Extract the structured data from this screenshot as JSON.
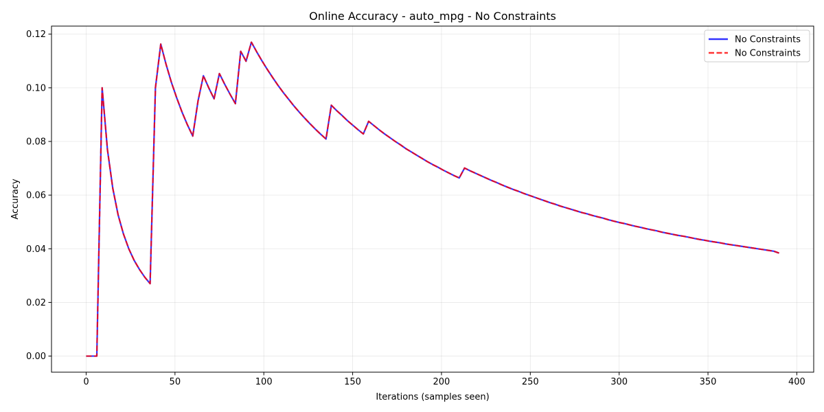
{
  "chart_data": {
    "type": "line",
    "title": "Online Accuracy - auto_mpg - No Constraints",
    "xlabel": "Iterations (samples seen)",
    "ylabel": "Accuracy",
    "xlim": [
      -19.5,
      409.5
    ],
    "ylim": [
      -0.006,
      0.123
    ],
    "xticks": [
      0,
      50,
      100,
      150,
      200,
      250,
      300,
      350,
      400
    ],
    "xtick_labels": [
      "0",
      "50",
      "100",
      "150",
      "200",
      "250",
      "300",
      "350",
      "400"
    ],
    "yticks": [
      0.0,
      0.02,
      0.04,
      0.06,
      0.08,
      0.1,
      0.12
    ],
    "ytick_labels": [
      "0.00",
      "0.02",
      "0.04",
      "0.06",
      "0.08",
      "0.10",
      "0.12"
    ],
    "grid": true,
    "legend_position": "top-right",
    "series": [
      {
        "name": "No Constraints",
        "color": "#0000ff",
        "style": "solid",
        "x": [
          0,
          3,
          6,
          9,
          12,
          15,
          18,
          21,
          24,
          27,
          30,
          33,
          36,
          39,
          42,
          45,
          48,
          51,
          54,
          57,
          60,
          63,
          66,
          69,
          72,
          75,
          78,
          81,
          84,
          87,
          90,
          93,
          96,
          99,
          102,
          105,
          108,
          111,
          114,
          117,
          120,
          123,
          126,
          129,
          132,
          135,
          138,
          141,
          144,
          147,
          150,
          153,
          156,
          159,
          162,
          165,
          168,
          171,
          174,
          177,
          180,
          183,
          186,
          189,
          192,
          195,
          198,
          201,
          204,
          207,
          210,
          213,
          216,
          219,
          222,
          225,
          228,
          231,
          234,
          237,
          240,
          243,
          246,
          249,
          252,
          255,
          258,
          261,
          264,
          267,
          270,
          273,
          276,
          279,
          282,
          285,
          288,
          291,
          294,
          297,
          300,
          303,
          306,
          309,
          312,
          315,
          318,
          321,
          324,
          327,
          330,
          333,
          336,
          339,
          342,
          345,
          348,
          351,
          354,
          357,
          360,
          363,
          366,
          369,
          372,
          375,
          378,
          381,
          384,
          387,
          390
        ],
        "y": [
          0.0,
          0.0,
          0.0,
          0.1,
          0.0769,
          0.0625,
          0.0526,
          0.0455,
          0.04,
          0.0357,
          0.0323,
          0.0294,
          0.027,
          0.1,
          0.1163,
          0.1087,
          0.102,
          0.0962,
          0.0909,
          0.0862,
          0.082,
          0.0952,
          0.1045,
          0.1,
          0.0959,
          0.1053,
          0.1013,
          0.0976,
          0.0941,
          0.1136,
          0.1099,
          0.117,
          0.1134,
          0.11,
          0.1068,
          0.1038,
          0.1009,
          0.0982,
          0.0957,
          0.0932,
          0.0909,
          0.0887,
          0.0866,
          0.0846,
          0.0827,
          0.0809,
          0.0935,
          0.0915,
          0.0897,
          0.0878,
          0.0861,
          0.0844,
          0.0828,
          0.0875,
          0.0859,
          0.0843,
          0.0828,
          0.0814,
          0.08,
          0.0787,
          0.0773,
          0.0761,
          0.0749,
          0.0737,
          0.0725,
          0.0714,
          0.0704,
          0.0693,
          0.0683,
          0.0673,
          0.0664,
          0.0701,
          0.0691,
          0.0682,
          0.0673,
          0.0664,
          0.0655,
          0.0647,
          0.0638,
          0.063,
          0.0622,
          0.0615,
          0.0607,
          0.06,
          0.0593,
          0.0586,
          0.0579,
          0.0572,
          0.0566,
          0.0559,
          0.0553,
          0.0547,
          0.0541,
          0.0535,
          0.053,
          0.0524,
          0.0519,
          0.0514,
          0.0508,
          0.0503,
          0.0498,
          0.0494,
          0.0489,
          0.0484,
          0.048,
          0.0475,
          0.0471,
          0.0467,
          0.0462,
          0.0458,
          0.0454,
          0.045,
          0.0447,
          0.0443,
          0.0439,
          0.0435,
          0.0432,
          0.0428,
          0.0425,
          0.0422,
          0.0418,
          0.0415,
          0.0412,
          0.0409,
          0.0406,
          0.0403,
          0.04,
          0.0397,
          0.0394,
          0.0391,
          0.0384
        ]
      },
      {
        "name": "No Constraints",
        "color": "#ff0000",
        "style": "dashed",
        "x": [
          0,
          3,
          6,
          9,
          12,
          15,
          18,
          21,
          24,
          27,
          30,
          33,
          36,
          39,
          42,
          45,
          48,
          51,
          54,
          57,
          60,
          63,
          66,
          69,
          72,
          75,
          78,
          81,
          84,
          87,
          90,
          93,
          96,
          99,
          102,
          105,
          108,
          111,
          114,
          117,
          120,
          123,
          126,
          129,
          132,
          135,
          138,
          141,
          144,
          147,
          150,
          153,
          156,
          159,
          162,
          165,
          168,
          171,
          174,
          177,
          180,
          183,
          186,
          189,
          192,
          195,
          198,
          201,
          204,
          207,
          210,
          213,
          216,
          219,
          222,
          225,
          228,
          231,
          234,
          237,
          240,
          243,
          246,
          249,
          252,
          255,
          258,
          261,
          264,
          267,
          270,
          273,
          276,
          279,
          282,
          285,
          288,
          291,
          294,
          297,
          300,
          303,
          306,
          309,
          312,
          315,
          318,
          321,
          324,
          327,
          330,
          333,
          336,
          339,
          342,
          345,
          348,
          351,
          354,
          357,
          360,
          363,
          366,
          369,
          372,
          375,
          378,
          381,
          384,
          387,
          390
        ],
        "y": [
          0.0,
          0.0,
          0.0,
          0.1,
          0.0769,
          0.0625,
          0.0526,
          0.0455,
          0.04,
          0.0357,
          0.0323,
          0.0294,
          0.027,
          0.1,
          0.1163,
          0.1087,
          0.102,
          0.0962,
          0.0909,
          0.0862,
          0.082,
          0.0952,
          0.1045,
          0.1,
          0.0959,
          0.1053,
          0.1013,
          0.0976,
          0.0941,
          0.1136,
          0.1099,
          0.117,
          0.1134,
          0.11,
          0.1068,
          0.1038,
          0.1009,
          0.0982,
          0.0957,
          0.0932,
          0.0909,
          0.0887,
          0.0866,
          0.0846,
          0.0827,
          0.0809,
          0.0935,
          0.0915,
          0.0897,
          0.0878,
          0.0861,
          0.0844,
          0.0828,
          0.0875,
          0.0859,
          0.0843,
          0.0828,
          0.0814,
          0.08,
          0.0787,
          0.0773,
          0.0761,
          0.0749,
          0.0737,
          0.0725,
          0.0714,
          0.0704,
          0.0693,
          0.0683,
          0.0673,
          0.0664,
          0.0701,
          0.0691,
          0.0682,
          0.0673,
          0.0664,
          0.0655,
          0.0647,
          0.0638,
          0.063,
          0.0622,
          0.0615,
          0.0607,
          0.06,
          0.0593,
          0.0586,
          0.0579,
          0.0572,
          0.0566,
          0.0559,
          0.0553,
          0.0547,
          0.0541,
          0.0535,
          0.053,
          0.0524,
          0.0519,
          0.0514,
          0.0508,
          0.0503,
          0.0498,
          0.0494,
          0.0489,
          0.0484,
          0.048,
          0.0475,
          0.0471,
          0.0467,
          0.0462,
          0.0458,
          0.0454,
          0.045,
          0.0447,
          0.0443,
          0.0439,
          0.0435,
          0.0432,
          0.0428,
          0.0425,
          0.0422,
          0.0418,
          0.0415,
          0.0412,
          0.0409,
          0.0406,
          0.0403,
          0.04,
          0.0397,
          0.0394,
          0.0391,
          0.0384
        ]
      }
    ]
  }
}
